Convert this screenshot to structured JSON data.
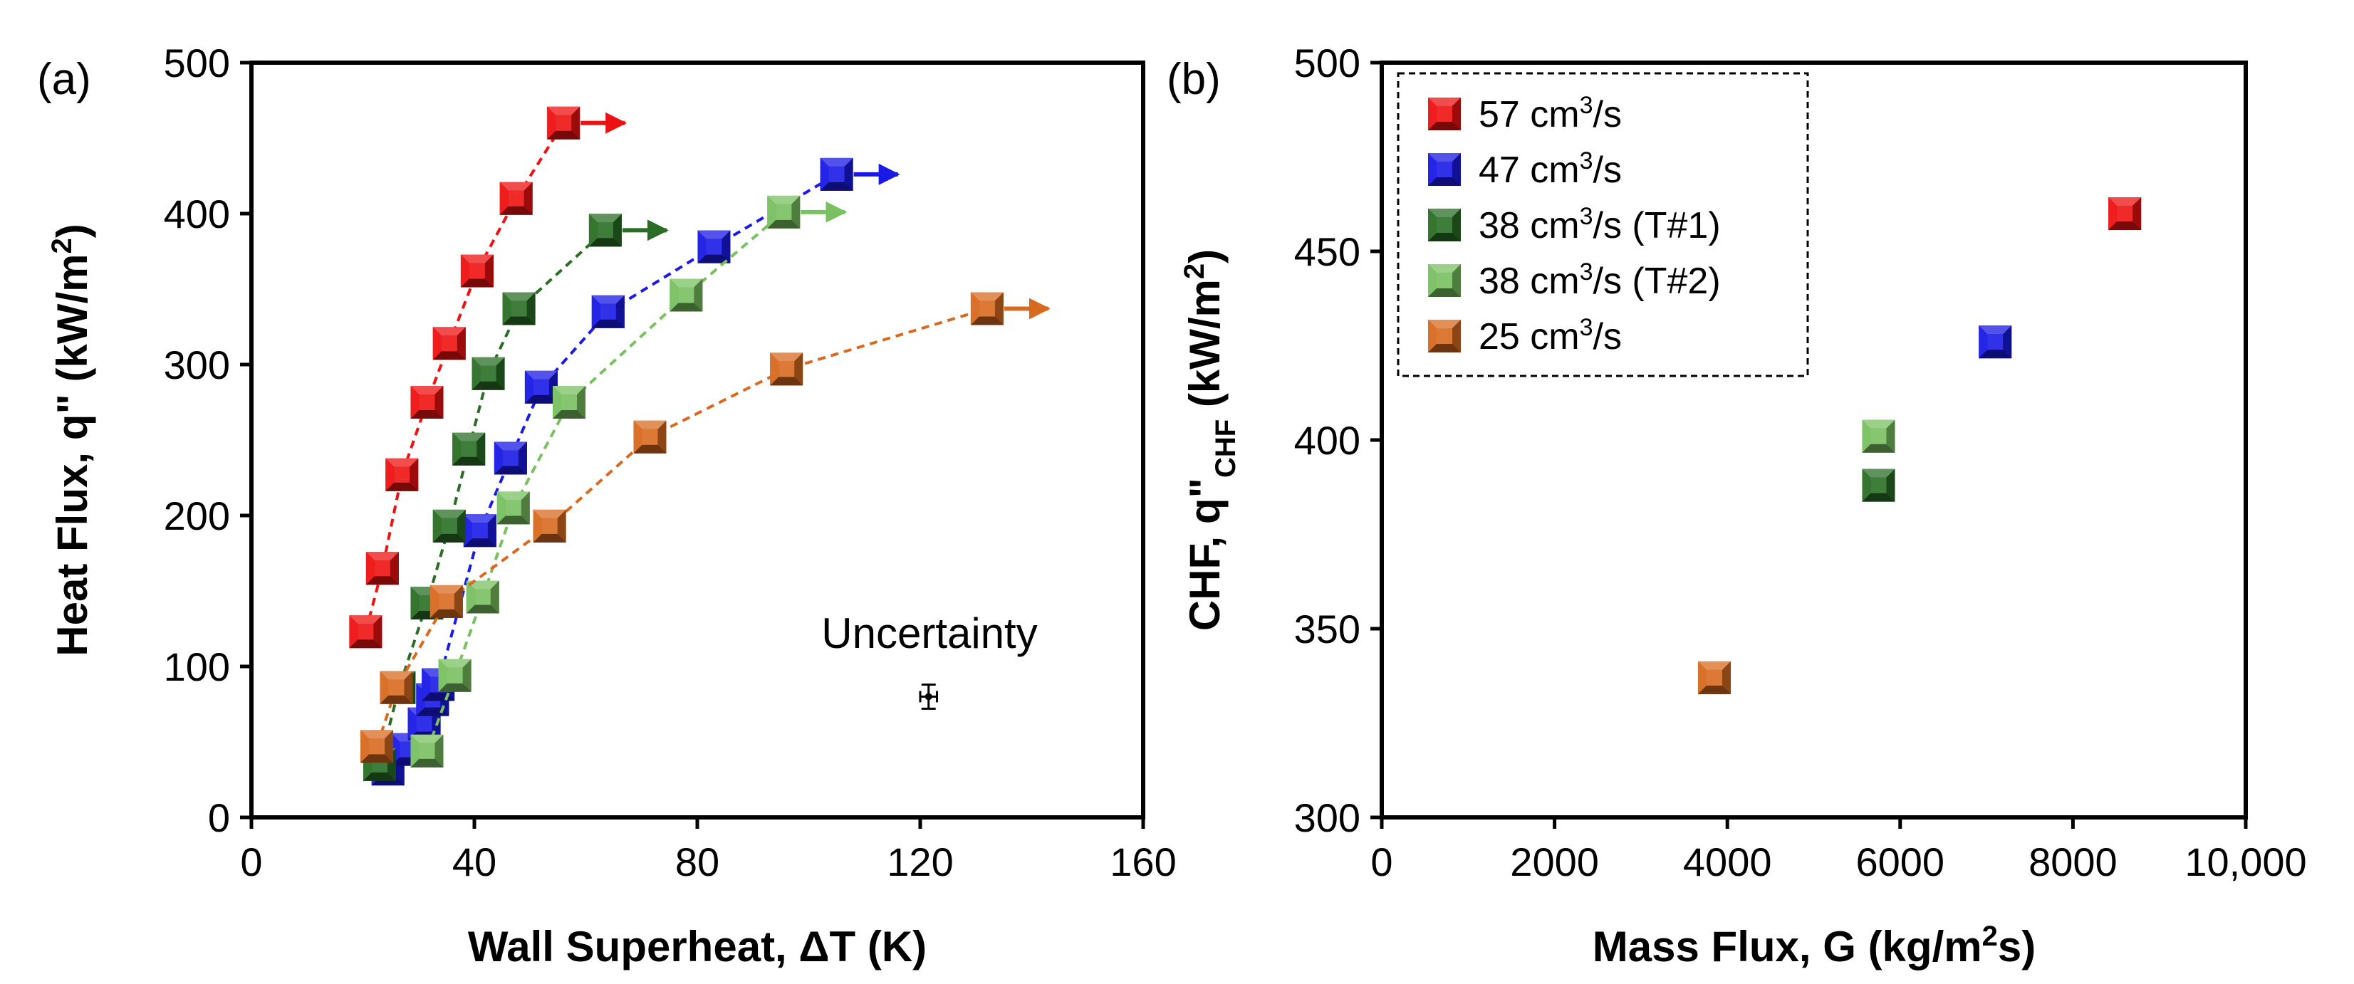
{
  "chart_data": [
    {
      "type": "scatter",
      "panel_label": "(a)",
      "xlabel": "Wall Superheat, ΔT (K)",
      "ylabel_main": "Heat Flux, q\" (kW/m",
      "ylabel_sup": "2",
      "ylabel_end": ")",
      "xlim": [
        0,
        160
      ],
      "ylim": [
        0,
        500
      ],
      "xticks": [
        0,
        40,
        80,
        120,
        160
      ],
      "yticks": [
        0,
        100,
        200,
        300,
        400,
        500
      ],
      "annotation": "Uncertainty",
      "uncertainty_point": {
        "x": 121.5,
        "y": 80,
        "xerr": 1.5,
        "yerr": 8
      },
      "series": [
        {
          "name": "57 cm3/s",
          "color": "#ee1111",
          "x": [
            20.5,
            23.5,
            27.0,
            31.5,
            35.5,
            40.5,
            47.5,
            56.0
          ],
          "y": [
            123,
            165,
            227,
            275,
            314,
            362,
            410,
            460
          ],
          "chf_index": 7
        },
        {
          "name": "47 cm3/s",
          "color": "#1a1ae6",
          "x": [
            24.5,
            28.0,
            31.0,
            32.5,
            33.5,
            41.0,
            46.5,
            52.0,
            64.0,
            83.0,
            105.0
          ],
          "y": [
            32,
            45,
            62,
            78,
            88,
            190,
            238,
            285,
            335,
            378,
            426
          ],
          "chf_index": 10
        },
        {
          "name": "38 cm3/s (T#1)",
          "color": "#2a6e25",
          "x": [
            23.0,
            26.5,
            31.5,
            35.5,
            39.0,
            42.5,
            48.0,
            63.5
          ],
          "y": [
            35,
            86,
            142,
            193,
            244,
            294,
            337,
            389
          ],
          "chf_index": 7
        },
        {
          "name": "38 cm3/s (T#2)",
          "color": "#78c060",
          "x": [
            31.5,
            36.5,
            41.5,
            47.0,
            57.0,
            78.0,
            95.5
          ],
          "y": [
            44,
            94,
            146,
            205,
            275,
            346,
            401
          ],
          "chf_index": 6
        },
        {
          "name": "25 cm3/s",
          "color": "#d86a20",
          "x": [
            22.5,
            26.0,
            35.0,
            53.5,
            71.5,
            96.0,
            132.0
          ],
          "y": [
            47,
            86,
            143,
            193,
            252,
            297,
            337
          ],
          "chf_index": 6
        }
      ]
    },
    {
      "type": "scatter",
      "panel_label": "(b)",
      "xlabel_main": "Mass Flux, G (kg/m",
      "xlabel_sup": "2",
      "xlabel_end": "s)",
      "ylabel_main": "CHF, q\"",
      "ylabel_sub": "CHF",
      "ylabel_end": " (kW/m",
      "ylabel_sup": "2",
      "ylabel_end2": ")",
      "xlim": [
        0,
        10000
      ],
      "ylim": [
        300,
        500
      ],
      "xticks": [
        0,
        2000,
        4000,
        6000,
        8000,
        10000
      ],
      "xtick_labels": [
        "0",
        "2000",
        "4000",
        "6000",
        "8000",
        "10,000"
      ],
      "yticks": [
        300,
        350,
        400,
        450,
        500
      ],
      "legend_position": "top-left",
      "series": [
        {
          "name": "57 cm3/s",
          "label_pre": "57 cm",
          "label_sup": "3",
          "label_post": "/s",
          "color": "#ee1111",
          "x": [
            8600
          ],
          "y": [
            460
          ]
        },
        {
          "name": "47 cm3/s",
          "label_pre": "47 cm",
          "label_sup": "3",
          "label_post": "/s",
          "color": "#1a1ae6",
          "x": [
            7100
          ],
          "y": [
            426
          ]
        },
        {
          "name": "38 cm3/s (T#1)",
          "label_pre": "38 cm",
          "label_sup": "3",
          "label_post": "/s (T#1)",
          "color": "#2a6e25",
          "x": [
            5750
          ],
          "y": [
            388
          ]
        },
        {
          "name": "38 cm3/s (T#2)",
          "label_pre": "38 cm",
          "label_sup": "3",
          "label_post": "/s (T#2)",
          "color": "#78c060",
          "x": [
            5750
          ],
          "y": [
            401
          ]
        },
        {
          "name": "25 cm3/s",
          "label_pre": "25 cm",
          "label_sup": "3",
          "label_post": "/s",
          "color": "#d86a20",
          "x": [
            3850
          ],
          "y": [
            337
          ]
        }
      ]
    }
  ]
}
